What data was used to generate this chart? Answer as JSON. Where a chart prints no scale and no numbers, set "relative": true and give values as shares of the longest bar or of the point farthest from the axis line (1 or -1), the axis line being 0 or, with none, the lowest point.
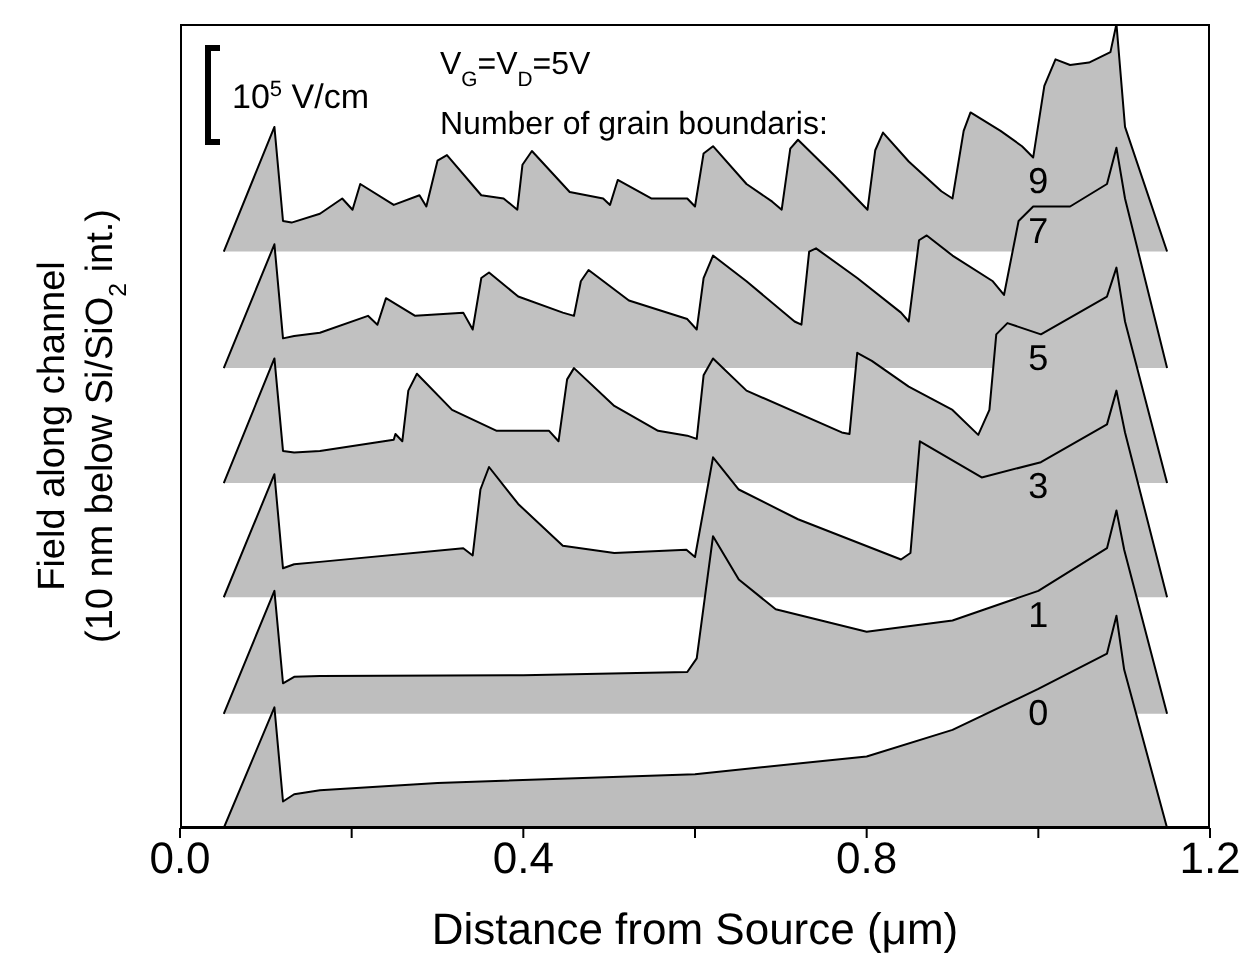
{
  "chart_data": {
    "type": "area",
    "relative": true,
    "xlabel": "Distance from Source (μm)",
    "ylabel": "Field along channel\n(10 nm below Si/SiO$_{2}$ int.)",
    "annotations": [
      "10$^{5}$ V/cm",
      "V$_{G}$=V$_{D}$=5V",
      "Number of grain boundaris:"
    ],
    "xlim": [
      0,
      1.2
    ],
    "xticks": [
      {
        "value": 0,
        "label": "0.0"
      },
      {
        "value": 0.2,
        "label": null
      },
      0.4,
      {
        "value": 0.6,
        "label": null
      },
      0.8,
      {
        "value": 1.0,
        "label": null
      },
      1.2
    ],
    "grid": false,
    "legend": false,
    "series": [
      {
        "name": "9",
        "color": "#c0c0c0",
        "x": [
          0.051,
          0.11,
          0.12,
          0.13,
          0.163,
          0.189,
          0.201,
          0.21,
          0.249,
          0.279,
          0.287,
          0.3,
          0.311,
          0.351,
          0.377,
          0.393,
          0.399,
          0.41,
          0.454,
          0.493,
          0.501,
          0.51,
          0.549,
          0.591,
          0.6,
          0.61,
          0.621,
          0.66,
          0.69,
          0.701,
          0.711,
          0.72,
          0.763,
          0.801,
          0.81,
          0.819,
          0.849,
          0.887,
          0.9,
          0.913,
          0.921,
          0.956,
          0.981,
          0.994,
          1.007,
          1.02,
          1.037,
          1.059,
          1.084,
          1.091,
          1.101,
          1.15
        ],
        "values": [
          0.717,
          0.872,
          0.755,
          0.753,
          0.764,
          0.783,
          0.769,
          0.801,
          0.775,
          0.787,
          0.773,
          0.83,
          0.837,
          0.787,
          0.783,
          0.769,
          0.825,
          0.842,
          0.791,
          0.783,
          0.775,
          0.806,
          0.783,
          0.783,
          0.773,
          0.839,
          0.848,
          0.801,
          0.779,
          0.769,
          0.845,
          0.856,
          0.811,
          0.769,
          0.843,
          0.865,
          0.829,
          0.792,
          0.783,
          0.867,
          0.89,
          0.867,
          0.848,
          0.834,
          0.923,
          0.956,
          0.949,
          0.952,
          0.965,
          1.0,
          0.872,
          0.717
        ]
      },
      {
        "name": "7",
        "color": "#c1c1c1",
        "x": [
          0.051,
          0.11,
          0.12,
          0.133,
          0.163,
          0.219,
          0.23,
          0.24,
          0.274,
          0.33,
          0.341,
          0.351,
          0.36,
          0.394,
          0.446,
          0.459,
          0.467,
          0.476,
          0.523,
          0.591,
          0.602,
          0.61,
          0.621,
          0.66,
          0.716,
          0.724,
          0.733,
          0.741,
          0.789,
          0.84,
          0.849,
          0.861,
          0.87,
          0.9,
          0.947,
          0.96,
          0.977,
          0.994,
          1.037,
          1.08,
          1.091,
          1.101,
          1.15
        ],
        "values": [
          0.572,
          0.726,
          0.609,
          0.612,
          0.616,
          0.637,
          0.626,
          0.659,
          0.637,
          0.641,
          0.62,
          0.684,
          0.691,
          0.661,
          0.641,
          0.637,
          0.68,
          0.694,
          0.656,
          0.633,
          0.62,
          0.684,
          0.712,
          0.68,
          0.63,
          0.626,
          0.717,
          0.721,
          0.684,
          0.641,
          0.63,
          0.731,
          0.737,
          0.712,
          0.68,
          0.663,
          0.755,
          0.773,
          0.773,
          0.801,
          0.846,
          0.783,
          0.572
        ]
      },
      {
        "name": "5",
        "color": "#c2c2c2",
        "x": [
          0.051,
          0.11,
          0.12,
          0.133,
          0.163,
          0.249,
          0.251,
          0.259,
          0.266,
          0.276,
          0.317,
          0.369,
          0.43,
          0.441,
          0.451,
          0.459,
          0.506,
          0.557,
          0.591,
          0.602,
          0.61,
          0.621,
          0.66,
          0.771,
          0.78,
          0.789,
          0.806,
          0.849,
          0.9,
          0.93,
          0.943,
          0.951,
          0.964,
          1.003,
          1.08,
          1.091,
          1.101,
          1.15
        ],
        "values": [
          0.429,
          0.584,
          0.469,
          0.467,
          0.469,
          0.483,
          0.49,
          0.481,
          0.544,
          0.565,
          0.52,
          0.494,
          0.494,
          0.481,
          0.558,
          0.572,
          0.525,
          0.494,
          0.488,
          0.484,
          0.563,
          0.584,
          0.544,
          0.492,
          0.49,
          0.591,
          0.581,
          0.549,
          0.52,
          0.489,
          0.52,
          0.614,
          0.628,
          0.614,
          0.661,
          0.697,
          0.63,
          0.429
        ]
      },
      {
        "name": "3",
        "color": "#bfbfbf",
        "x": [
          0.051,
          0.11,
          0.12,
          0.133,
          0.163,
          0.33,
          0.341,
          0.35,
          0.36,
          0.394,
          0.446,
          0.506,
          0.59,
          0.6,
          0.621,
          0.651,
          0.72,
          0.84,
          0.851,
          0.862,
          0.934,
          1.003,
          1.08,
          1.091,
          1.101,
          1.15
        ],
        "values": [
          0.287,
          0.44,
          0.323,
          0.328,
          0.331,
          0.348,
          0.339,
          0.421,
          0.449,
          0.403,
          0.351,
          0.342,
          0.346,
          0.337,
          0.461,
          0.421,
          0.384,
          0.334,
          0.342,
          0.481,
          0.436,
          0.455,
          0.502,
          0.544,
          0.492,
          0.287
        ]
      },
      {
        "name": "1",
        "color": "#bebebe",
        "x": [
          0.051,
          0.11,
          0.12,
          0.133,
          0.163,
          0.4,
          0.591,
          0.602,
          0.621,
          0.651,
          0.694,
          0.8,
          0.9,
          1.0,
          1.08,
          1.091,
          1.1,
          1.15
        ],
        "values": [
          0.142,
          0.295,
          0.18,
          0.188,
          0.189,
          0.19,
          0.194,
          0.211,
          0.363,
          0.309,
          0.272,
          0.244,
          0.258,
          0.295,
          0.348,
          0.395,
          0.346,
          0.142
        ]
      },
      {
        "name": "0",
        "color": "#bdbdbd",
        "x": [
          0.051,
          0.11,
          0.12,
          0.133,
          0.163,
          0.3,
          0.6,
          0.8,
          0.9,
          1.0,
          1.08,
          1.091,
          1.1,
          1.15
        ],
        "values": [
          0,
          0.15,
          0.033,
          0.042,
          0.047,
          0.056,
          0.067,
          0.089,
          0.122,
          0.173,
          0.217,
          0.264,
          0.197,
          0
        ]
      }
    ]
  }
}
